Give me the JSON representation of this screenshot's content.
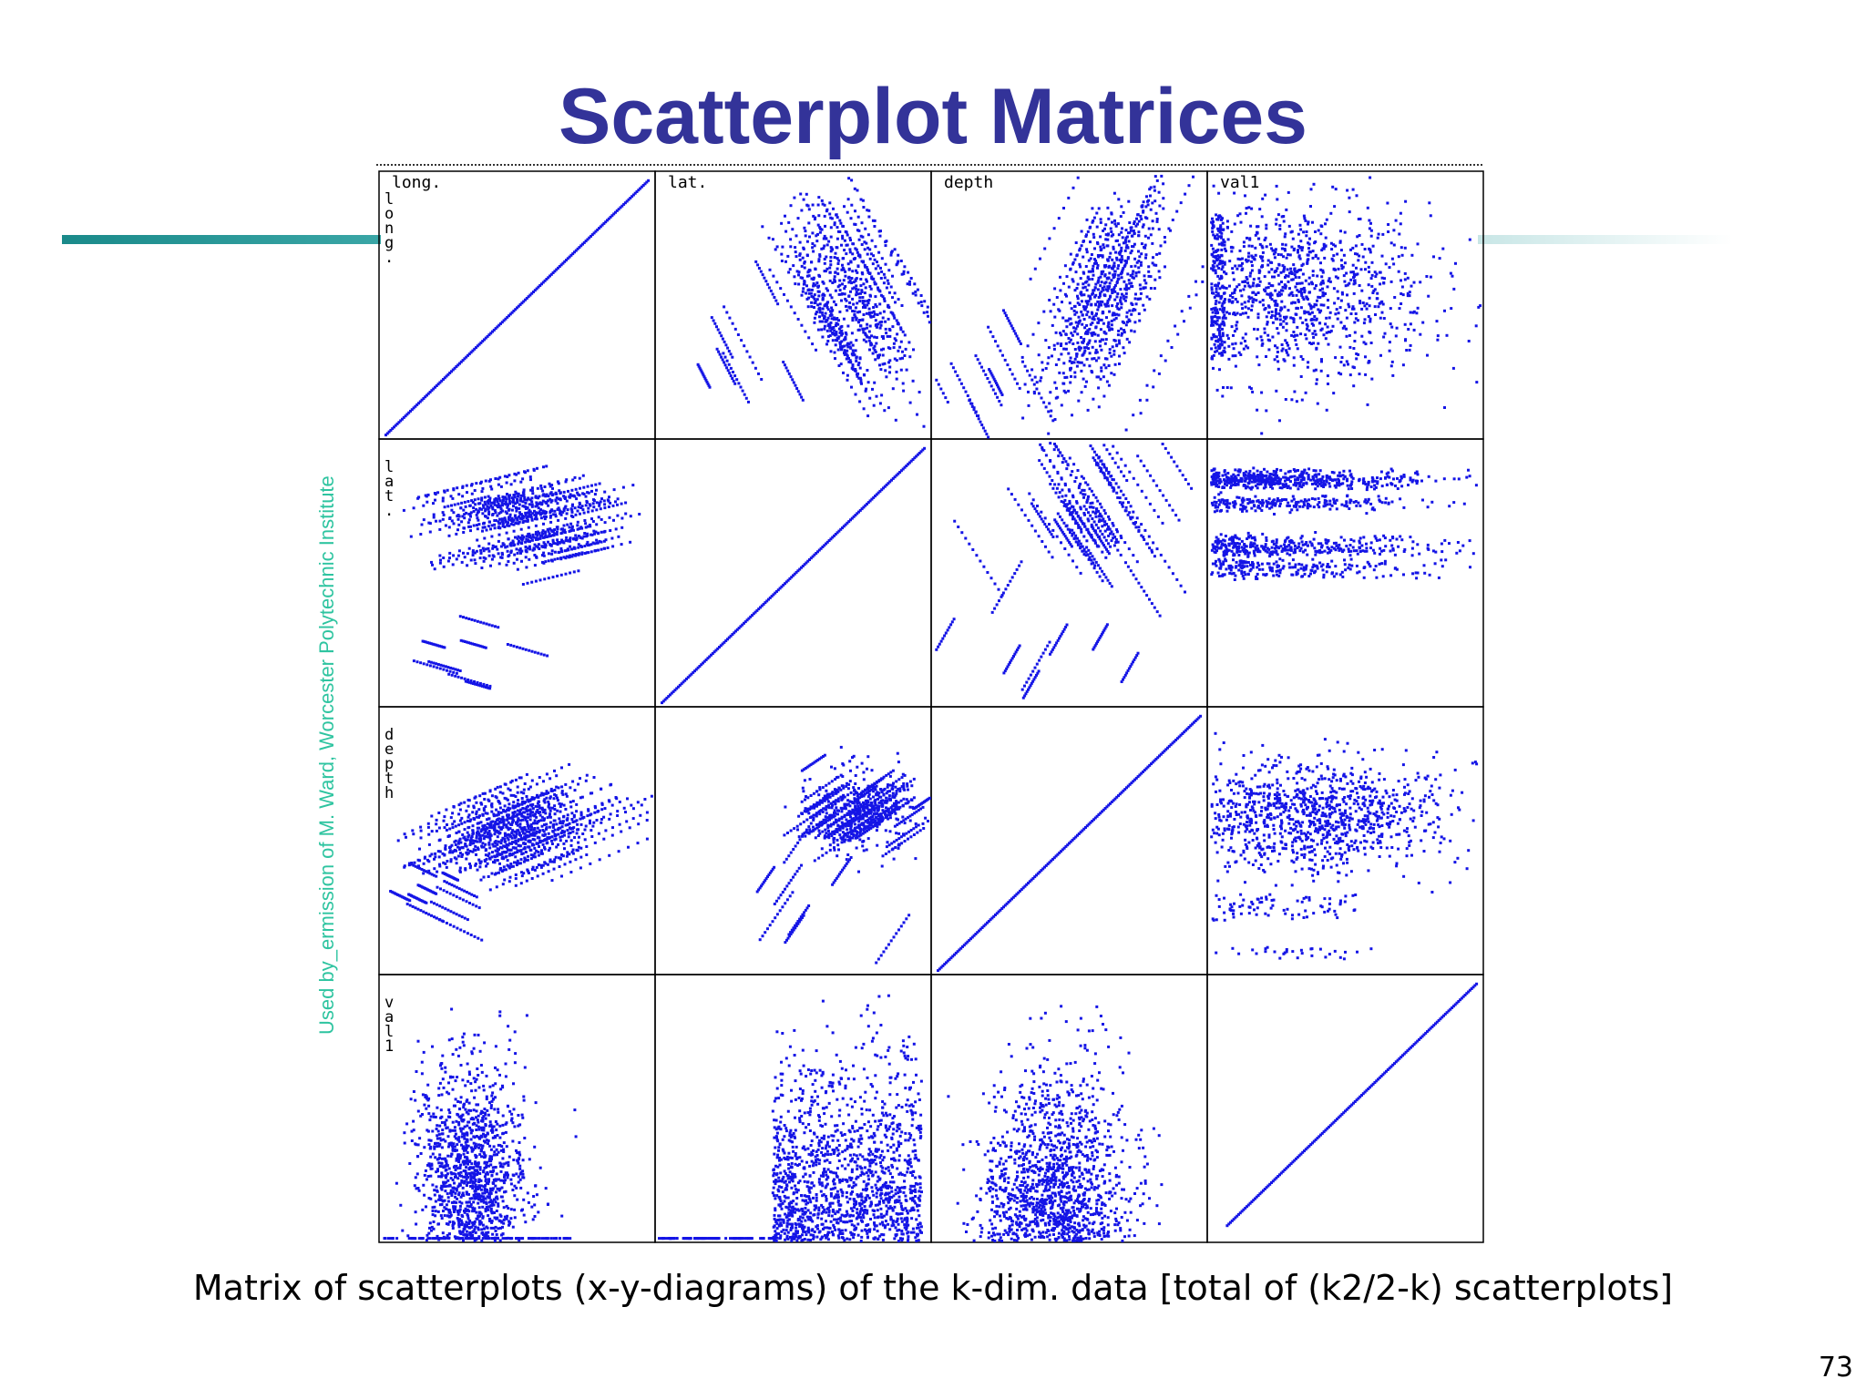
{
  "title": "Scatterplot Matrices",
  "caption": "Matrix of scatterplots (x-y-diagrams) of the k-dim. data [total of (k2/2-k) scatterplots]",
  "credit": "Used by_ermission of M. Ward, Worcester Polytechnic Institute",
  "page_number": "73",
  "colors": {
    "title": "#333399",
    "points": "#1414e6",
    "rule": "#1a8a8a",
    "credit": "#2ec4a0"
  },
  "chart_data": {
    "type": "scatter",
    "layout": "scatterplot-matrix",
    "variables": [
      "long.",
      "lat.",
      "depth",
      "val1"
    ],
    "diagonal": "identity line",
    "grid": true,
    "legend": "none"
  }
}
